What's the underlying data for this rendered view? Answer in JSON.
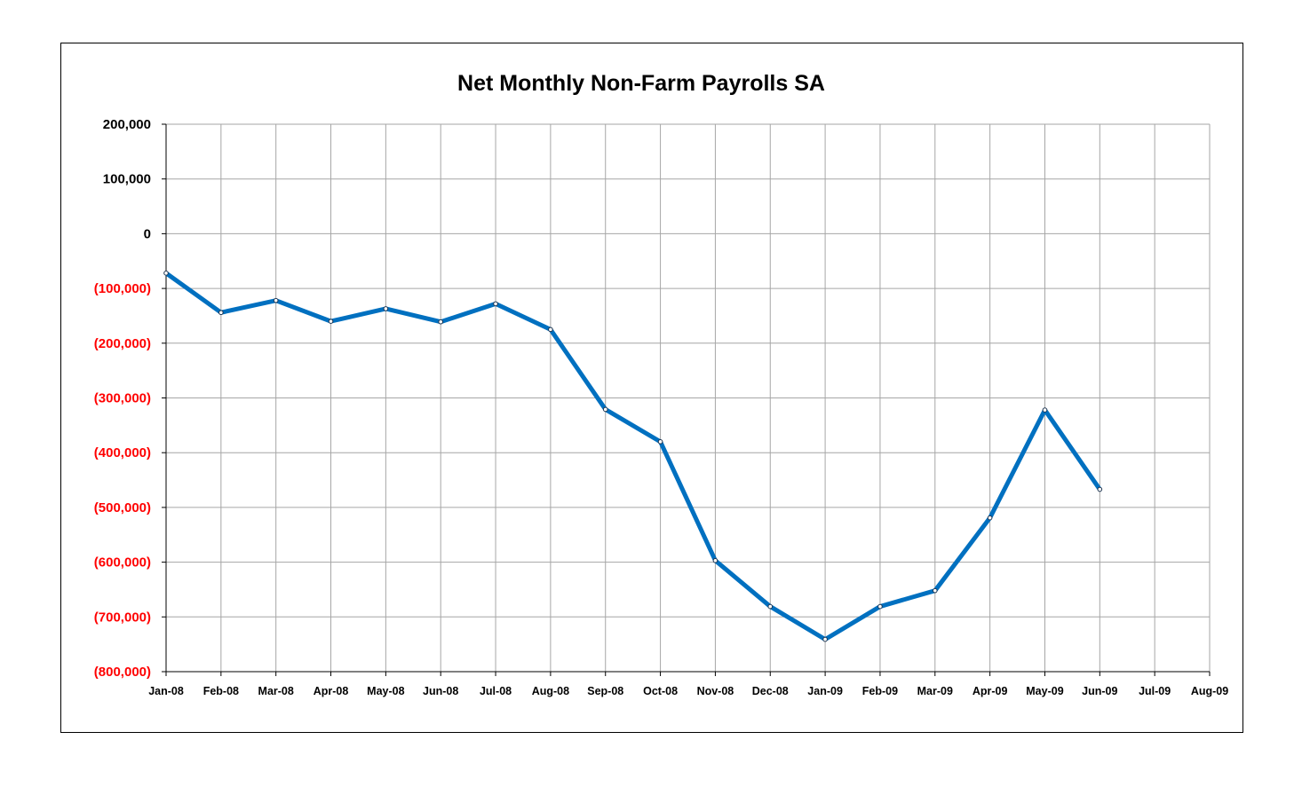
{
  "chart_data": {
    "type": "line",
    "title": "Net Monthly Non-Farm Payrolls SA",
    "xlabel": "",
    "ylabel": "",
    "categories": [
      "Jan-08",
      "Feb-08",
      "Mar-08",
      "Apr-08",
      "May-08",
      "Jun-08",
      "Jul-08",
      "Aug-08",
      "Sep-08",
      "Oct-08",
      "Nov-08",
      "Dec-08",
      "Jan-09",
      "Feb-09",
      "Mar-09",
      "Apr-09",
      "May-09",
      "Jun-09",
      "Jul-09",
      "Aug-09"
    ],
    "series": [
      {
        "values": [
          -72000,
          -144000,
          -122000,
          -160000,
          -137000,
          -161000,
          -128000,
          -175000,
          -321000,
          -380000,
          -597000,
          -681000,
          -741000,
          -681000,
          -652000,
          -519000,
          -322000,
          -467000,
          null,
          null
        ]
      }
    ],
    "ylim": [
      -800000,
      200000
    ],
    "yticks": [
      200000,
      100000,
      0,
      -100000,
      -200000,
      -300000,
      -400000,
      -500000,
      -600000,
      -700000,
      -800000
    ],
    "ytick_labels": [
      "200,000",
      "100,000",
      "0",
      "(100,000)",
      "(200,000)",
      "(300,000)",
      "(400,000)",
      "(500,000)",
      "(600,000)",
      "(700,000)",
      "(800,000)"
    ],
    "grid": true,
    "legend": "none",
    "colors": {
      "line": "#0070C0",
      "grid": "#A6A6A6",
      "positive_tick": "#000000",
      "negative_tick": "#FF0000"
    }
  }
}
